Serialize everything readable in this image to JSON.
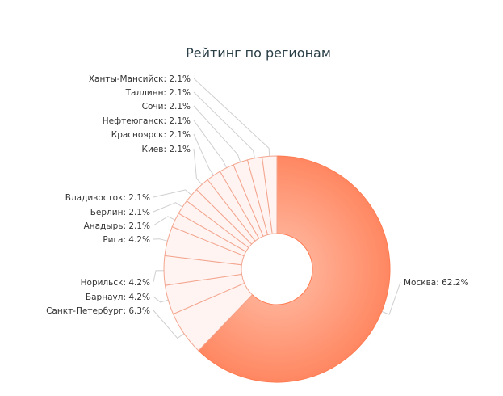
{
  "chart_data": {
    "type": "pie",
    "variant": "donut",
    "title": "Рейтинг по регионам",
    "legend": "none",
    "unit": "%",
    "slices": [
      {
        "label": "Москва",
        "value": 62.2
      },
      {
        "label": "Санкт-Петербург",
        "value": 6.3
      },
      {
        "label": "Барнаул",
        "value": 4.2
      },
      {
        "label": "Норильск",
        "value": 4.2
      },
      {
        "label": "Рига",
        "value": 4.2
      },
      {
        "label": "Анадырь",
        "value": 2.1
      },
      {
        "label": "Берлин",
        "value": 2.1
      },
      {
        "label": "Владивосток",
        "value": 2.1
      },
      {
        "label": "Киев",
        "value": 2.1
      },
      {
        "label": "Красноярск",
        "value": 2.1
      },
      {
        "label": "Нефтеюганск",
        "value": 2.1
      },
      {
        "label": "Сочи",
        "value": 2.1
      },
      {
        "label": "Таллинн",
        "value": 2.1
      },
      {
        "label": "Ханты-Мансийск",
        "value": 2.1
      }
    ],
    "colors": {
      "highlight_fill": "#ff8a65",
      "highlight_stroke": "#ff7a50",
      "slice_fill": "#fff4f1",
      "slice_stroke": "#f3a58f"
    }
  }
}
